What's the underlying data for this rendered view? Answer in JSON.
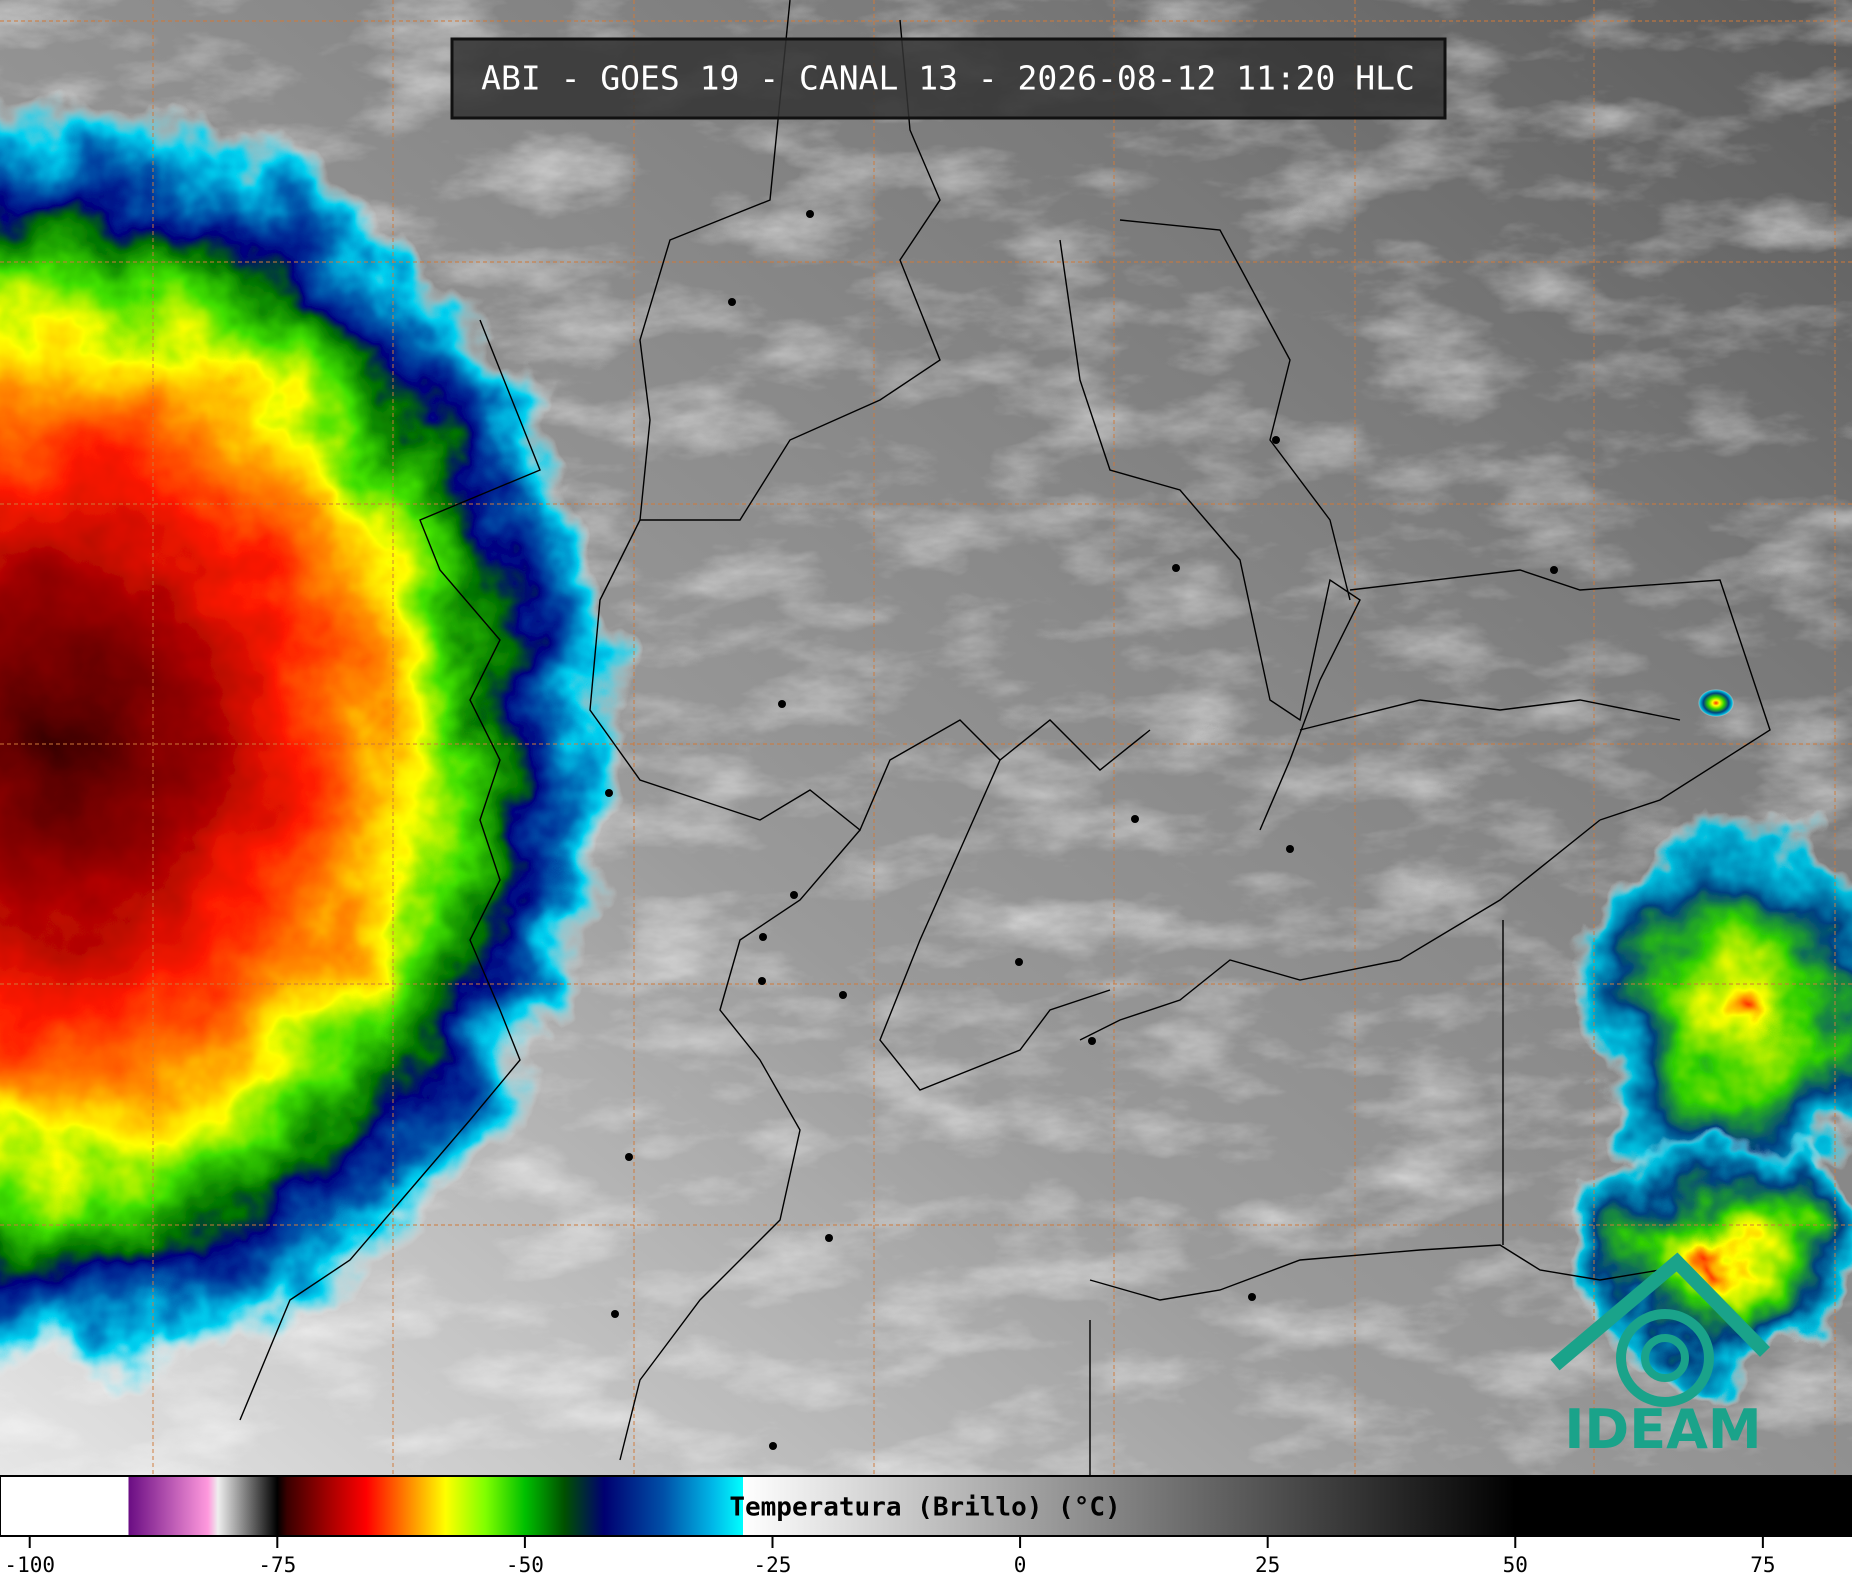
{
  "header": {
    "title": "ABI - GOES 19 - CANAL 13 - 2026-08-12 11:20 HLC"
  },
  "logo": {
    "text": "IDEAM"
  },
  "colorbar": {
    "label": "Temperatura (Brillo) (°C)",
    "xlim": [
      -103,
      84
    ],
    "ticks": [
      -100,
      -75,
      -50,
      -25,
      0,
      25,
      50,
      75
    ],
    "colorscale": [
      {
        "value": -90,
        "color": "#ffffff"
      },
      {
        "value": -90,
        "color": "#6a0d83"
      },
      {
        "value": -82,
        "color": "#ff99dd"
      },
      {
        "value": -81,
        "color": "#eeeeee"
      },
      {
        "value": -75,
        "color": "#000000"
      },
      {
        "value": -74,
        "color": "#3a0000"
      },
      {
        "value": -70,
        "color": "#a00000"
      },
      {
        "value": -66,
        "color": "#ff0000"
      },
      {
        "value": -62,
        "color": "#ff8000"
      },
      {
        "value": -58,
        "color": "#ffff00"
      },
      {
        "value": -54,
        "color": "#80ff00"
      },
      {
        "value": -50,
        "color": "#00c000"
      },
      {
        "value": -46,
        "color": "#005000"
      },
      {
        "value": -42,
        "color": "#000070"
      },
      {
        "value": -36,
        "color": "#0050a8"
      },
      {
        "value": -31,
        "color": "#00b8e8"
      },
      {
        "value": -28,
        "color": "#00ffff"
      },
      {
        "value": -28,
        "color": "#ffffff"
      },
      {
        "value": 50,
        "color": "#000000"
      }
    ]
  }
}
